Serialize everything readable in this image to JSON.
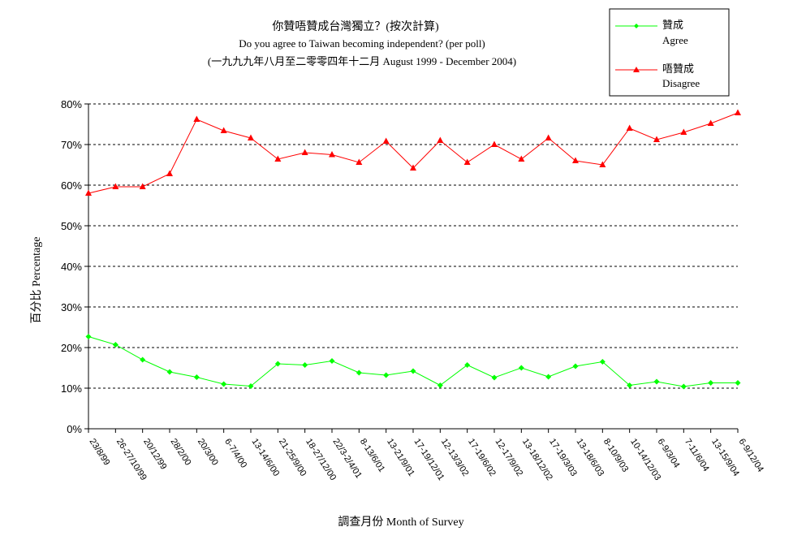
{
  "chart_data": {
    "type": "line",
    "title": "你贊唔贊成台灣獨立？(按次計算)",
    "subtitle": "Do you agree to Taiwan becoming independent? (per poll)",
    "subtitle2": "(一九九九年八月至二零零四年十二月 August 1999 - December 2004)",
    "xlabel": "調查月份 Month of Survey",
    "ylabel": "百分比 Percentage",
    "ylim": [
      0,
      80
    ],
    "yticks": [
      "0%",
      "10%",
      "20%",
      "30%",
      "40%",
      "50%",
      "60%",
      "70%",
      "80%"
    ],
    "grid": true,
    "legend_position": "top-right",
    "categories": [
      "23/8/99",
      "26-27/10/99",
      "20/12/99",
      "28/2/00",
      "20/3/00",
      "6-7/4/00",
      "13-14/6/00",
      "21-25/9/00",
      "18-27/12/00",
      "22/3-2/4/01",
      "8-13/6/01",
      "13-21/9/01",
      "17-19/12/01",
      "12-13/3/02",
      "17-19/6/02",
      "12-17/9/02",
      "13-18/12/02",
      "17-19/3/03",
      "13-18/6/03",
      "8-10/9/03",
      "10-14/12/03",
      "6-9/3/04",
      "7-11/6/04",
      "13-15/9/04",
      "6-9/12/04"
    ],
    "series": [
      {
        "name": "贊成",
        "name_en": "Agree",
        "color": "#00ff00",
        "marker": "diamond",
        "values": [
          22.7,
          20.7,
          17.0,
          14.0,
          12.7,
          11.0,
          10.5,
          16.0,
          15.7,
          16.7,
          13.8,
          13.2,
          14.2,
          10.7,
          15.7,
          12.6,
          15.0,
          12.8,
          15.4,
          16.5,
          10.7,
          11.6,
          10.4,
          11.3,
          11.3
        ]
      },
      {
        "name": "唔贊成",
        "name_en": "Disagree",
        "color": "#ff0000",
        "marker": "triangle",
        "values": [
          58.0,
          59.6,
          59.6,
          62.8,
          76.2,
          73.4,
          71.6,
          66.4,
          68.0,
          67.5,
          65.6,
          70.8,
          64.2,
          71.0,
          65.6,
          70.0,
          66.4,
          71.6,
          66.0,
          65.0,
          74.0,
          71.2,
          73.0,
          75.2,
          77.8
        ]
      }
    ]
  }
}
